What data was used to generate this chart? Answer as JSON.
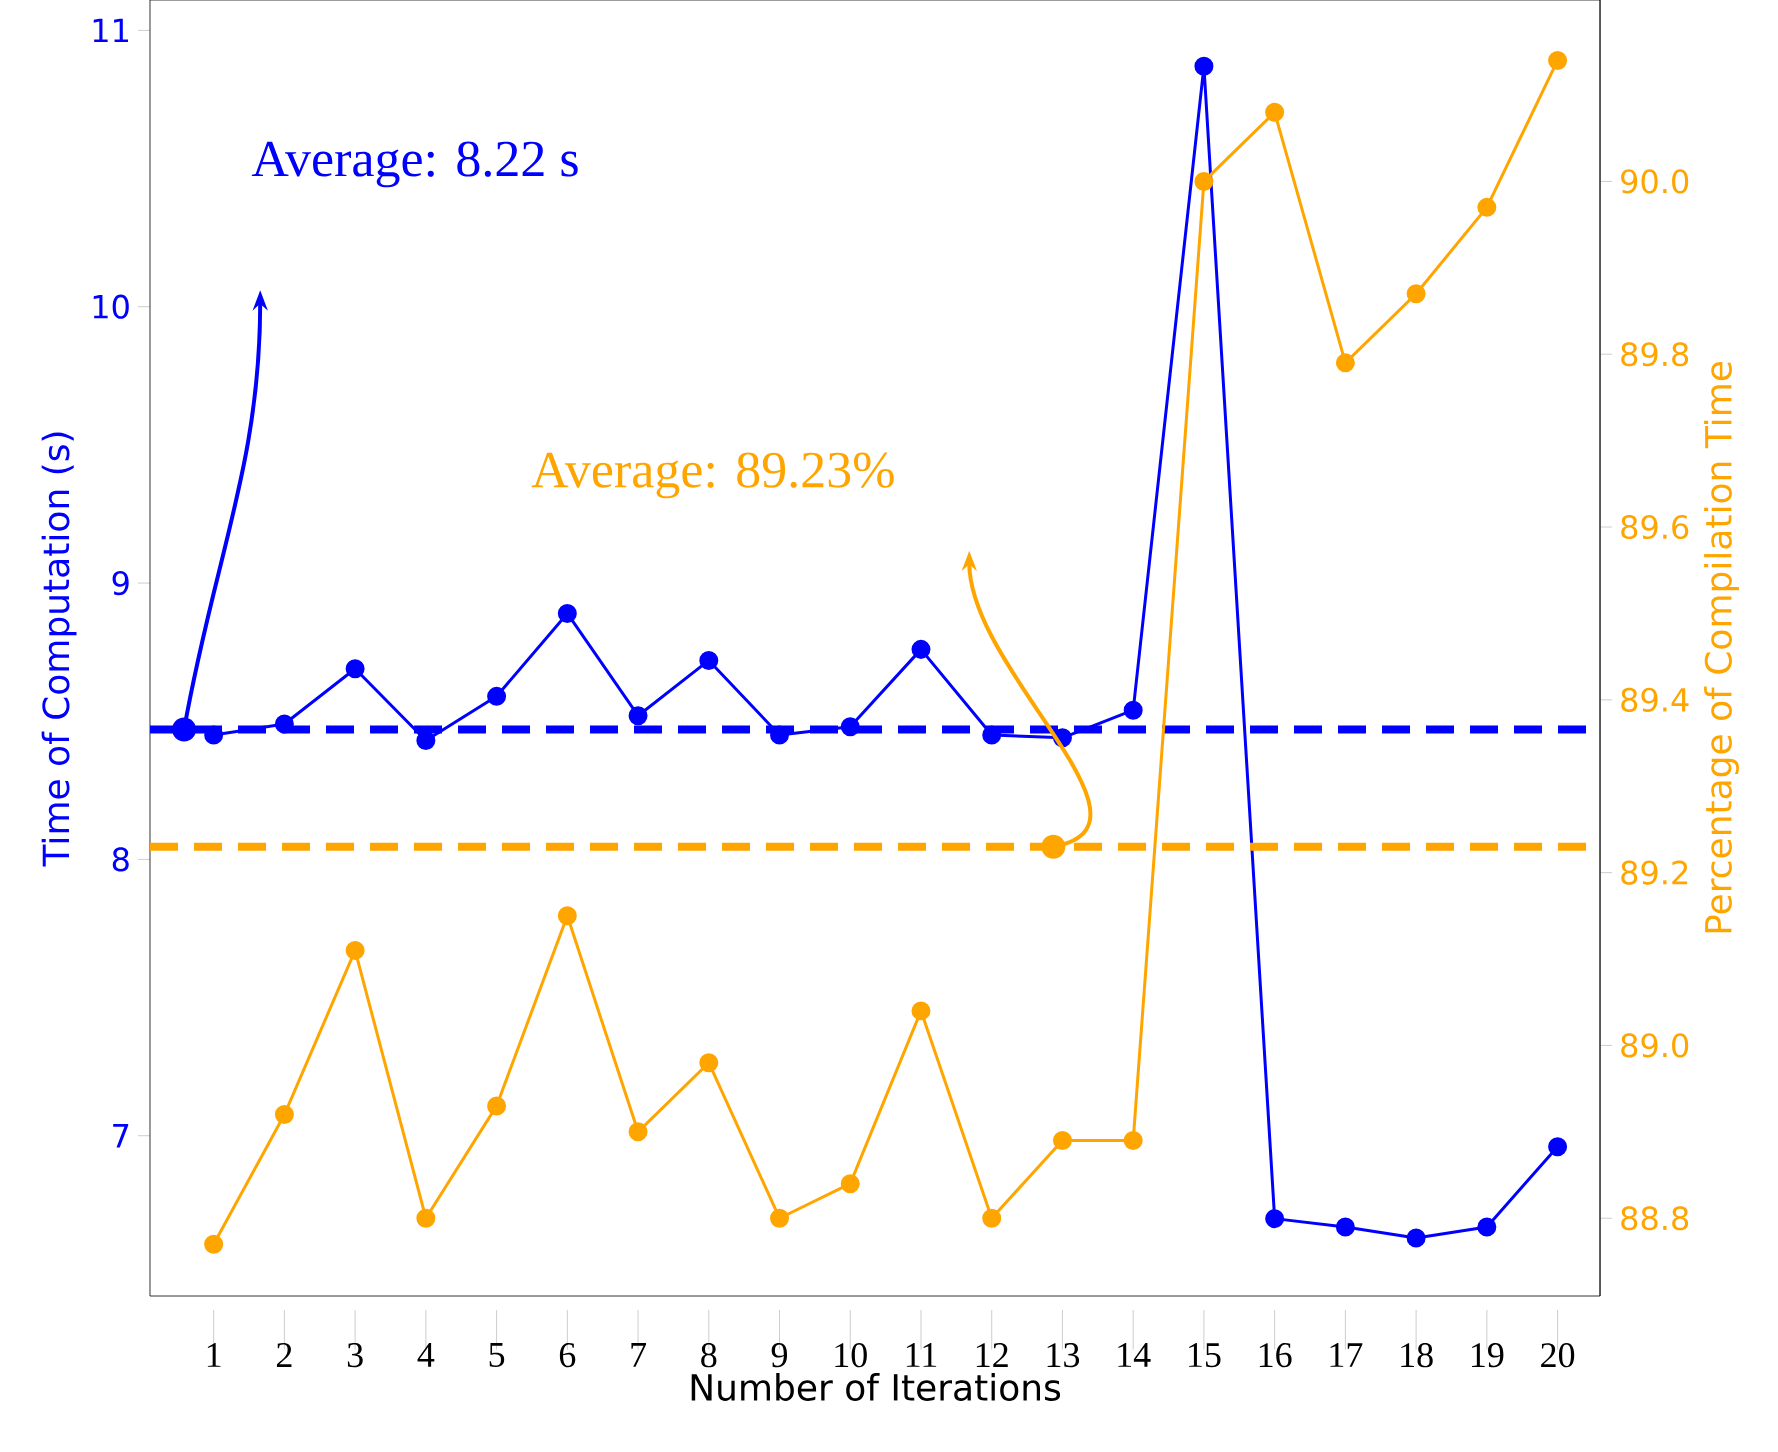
{
  "chart_data": {
    "type": "line",
    "xlabel": "Number of Iterations",
    "ylabel": "Time of Computation (s)",
    "y2label": "Percentage of Compilation Time",
    "x": [
      1,
      2,
      3,
      4,
      5,
      6,
      7,
      8,
      9,
      10,
      11,
      12,
      13,
      14,
      15,
      16,
      17,
      18,
      19,
      20
    ],
    "xlim": [
      0.1,
      20.6
    ],
    "xticks": [
      1,
      2,
      3,
      4,
      5,
      6,
      7,
      8,
      9,
      10,
      11,
      12,
      13,
      14,
      15,
      16,
      17,
      18,
      19,
      20
    ],
    "ylim": [
      6.42,
      11.11
    ],
    "yticks": [
      7,
      8,
      9,
      10,
      11
    ],
    "y2lim": [
      88.71,
      90.21
    ],
    "y2ticks": [
      88.8,
      {
        "value": 89,
        "label": "89.0"
      },
      89.2,
      89.4,
      89.6,
      89.8,
      {
        "value": 90,
        "label": "90.0"
      }
    ],
    "annotations": [
      "Average: 8.22 s",
      "Average: 89.23%"
    ],
    "marker": "circle",
    "grid": false,
    "series": [
      {
        "color": "#0000ff",
        "values": [
          8.45,
          8.49,
          8.69,
          8.43,
          8.59,
          8.89,
          8.52,
          8.72,
          8.45,
          8.48,
          8.76,
          8.45,
          8.44,
          8.54,
          10.87,
          6.7,
          6.67,
          6.63,
          6.67,
          6.96
        ]
      },
      {
        "color": "#ffa500",
        "axis": "y2",
        "values": [
          88.77,
          88.92,
          89.11,
          88.8,
          88.93,
          89.15,
          88.9,
          88.98,
          88.8,
          88.84,
          89.04,
          88.8,
          88.89,
          88.89,
          90.0,
          90.08,
          89.79,
          89.87,
          89.97,
          90.14
        ]
      }
    ],
    "ref_lines": [
      {
        "axis": "y",
        "value": 8.47,
        "color": "#0000ff",
        "line_style": "dashed"
      },
      {
        "axis": "y2",
        "value": 89.23,
        "color": "#ffa500",
        "line_style": "dashed"
      }
    ]
  }
}
